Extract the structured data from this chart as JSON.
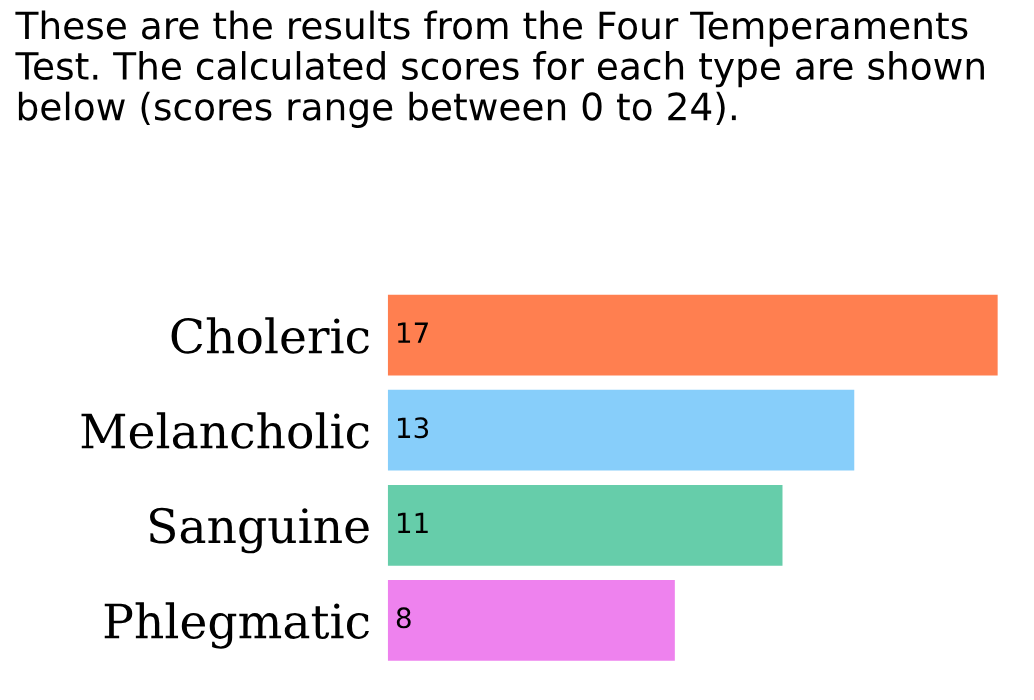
{
  "chart_data": {
    "type": "bar",
    "orientation": "horizontal",
    "title": "These are the results from the Four Temperaments Test. The calculated scores for each type are shown below (scores range between 0 to 24).",
    "categories": [
      "Choleric",
      "Melancholic",
      "Sanguine",
      "Phlegmatic"
    ],
    "values": [
      17,
      13,
      11,
      8
    ],
    "colors": [
      "#ff7f50",
      "#87cefa",
      "#66cdaa",
      "#ee82ee"
    ],
    "data_labels": true,
    "grid": false,
    "legend": false
  }
}
